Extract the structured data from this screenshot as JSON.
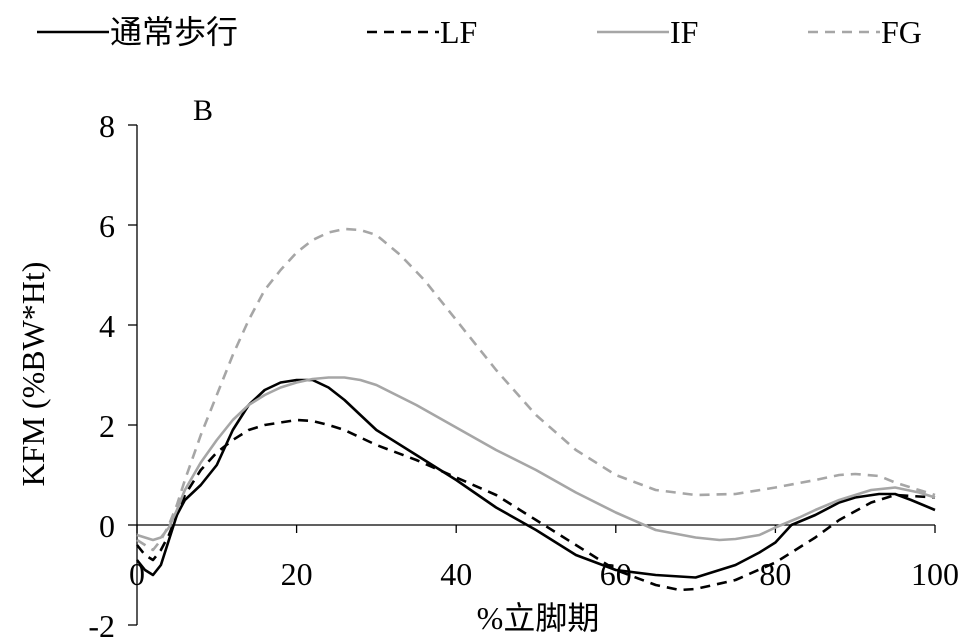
{
  "chart_data": {
    "type": "line",
    "panel_label": "B",
    "xlabel": "%立脚期",
    "ylabel": "KFM (%BW*Ht)",
    "xlim": [
      0,
      100
    ],
    "ylim": [
      -2,
      8
    ],
    "x_ticks": [
      0,
      20,
      40,
      60,
      80,
      100
    ],
    "y_ticks": [
      -2,
      0,
      2,
      4,
      6,
      8
    ],
    "x_tick_labels": [
      "0",
      "20",
      "40",
      "60",
      "80",
      "100"
    ],
    "y_tick_labels": [
      "-2",
      "0",
      "2",
      "4",
      "6",
      "8"
    ],
    "legend_position": "top",
    "grid": false,
    "series": [
      {
        "name": "通常歩行",
        "color": "#000000",
        "dash": "solid",
        "x": [
          0,
          1,
          2,
          3,
          4,
          5,
          6,
          8,
          10,
          12,
          14,
          16,
          18,
          20,
          22,
          24,
          26,
          28,
          30,
          35,
          40,
          45,
          50,
          55,
          60,
          65,
          70,
          75,
          78,
          80,
          82,
          85,
          88,
          90,
          93,
          95,
          97,
          100
        ],
        "y": [
          -0.7,
          -0.9,
          -1.0,
          -0.8,
          -0.3,
          0.2,
          0.5,
          0.8,
          1.2,
          1.9,
          2.4,
          2.7,
          2.85,
          2.9,
          2.9,
          2.75,
          2.5,
          2.2,
          1.9,
          1.4,
          0.9,
          0.35,
          -0.1,
          -0.6,
          -0.9,
          -1.0,
          -1.05,
          -0.8,
          -0.55,
          -0.35,
          0.0,
          0.2,
          0.45,
          0.55,
          0.62,
          0.62,
          0.5,
          0.3
        ]
      },
      {
        "name": "LF",
        "color": "#000000",
        "dash": "dashed",
        "x": [
          0,
          1,
          2,
          3,
          4,
          6,
          8,
          10,
          12,
          14,
          16,
          18,
          20,
          22,
          24,
          26,
          30,
          35,
          40,
          45,
          50,
          55,
          60,
          65,
          68,
          70,
          75,
          80,
          82,
          85,
          88,
          92,
          95,
          100
        ],
        "y": [
          -0.4,
          -0.6,
          -0.7,
          -0.5,
          -0.2,
          0.6,
          1.1,
          1.45,
          1.7,
          1.9,
          2.0,
          2.05,
          2.1,
          2.08,
          2.0,
          1.9,
          1.6,
          1.3,
          0.95,
          0.6,
          0.1,
          -0.4,
          -0.9,
          -1.2,
          -1.3,
          -1.28,
          -1.1,
          -0.75,
          -0.55,
          -0.25,
          0.1,
          0.45,
          0.6,
          0.55
        ]
      },
      {
        "name": "IF",
        "color": "#a6a6a6",
        "dash": "solid",
        "x": [
          0,
          2,
          3,
          4,
          5,
          6,
          8,
          10,
          12,
          14,
          16,
          18,
          20,
          22,
          24,
          26,
          28,
          30,
          35,
          40,
          45,
          50,
          55,
          60,
          65,
          70,
          73,
          75,
          78,
          80,
          83,
          85,
          88,
          92,
          95,
          98,
          100
        ],
        "y": [
          -0.2,
          -0.3,
          -0.25,
          -0.05,
          0.3,
          0.7,
          1.25,
          1.7,
          2.1,
          2.4,
          2.6,
          2.75,
          2.85,
          2.92,
          2.95,
          2.95,
          2.9,
          2.8,
          2.4,
          1.95,
          1.5,
          1.1,
          0.65,
          0.25,
          -0.1,
          -0.25,
          -0.3,
          -0.28,
          -0.2,
          -0.05,
          0.15,
          0.3,
          0.5,
          0.7,
          0.75,
          0.65,
          0.55
        ]
      },
      {
        "name": "FG",
        "color": "#a6a6a6",
        "dash": "dashed",
        "x": [
          0,
          1,
          2,
          3,
          4,
          5,
          6,
          8,
          10,
          12,
          14,
          16,
          18,
          20,
          22,
          24,
          26,
          28,
          30,
          33,
          36,
          40,
          45,
          50,
          55,
          60,
          65,
          70,
          75,
          80,
          85,
          88,
          90,
          93,
          95,
          98,
          100
        ],
        "y": [
          -0.3,
          -0.4,
          -0.5,
          -0.3,
          0.0,
          0.4,
          0.9,
          1.8,
          2.6,
          3.4,
          4.1,
          4.7,
          5.1,
          5.45,
          5.7,
          5.85,
          5.92,
          5.9,
          5.8,
          5.4,
          4.9,
          4.1,
          3.1,
          2.2,
          1.5,
          1.0,
          0.7,
          0.6,
          0.62,
          0.75,
          0.9,
          1.0,
          1.02,
          0.98,
          0.85,
          0.7,
          0.6
        ]
      }
    ]
  }
}
